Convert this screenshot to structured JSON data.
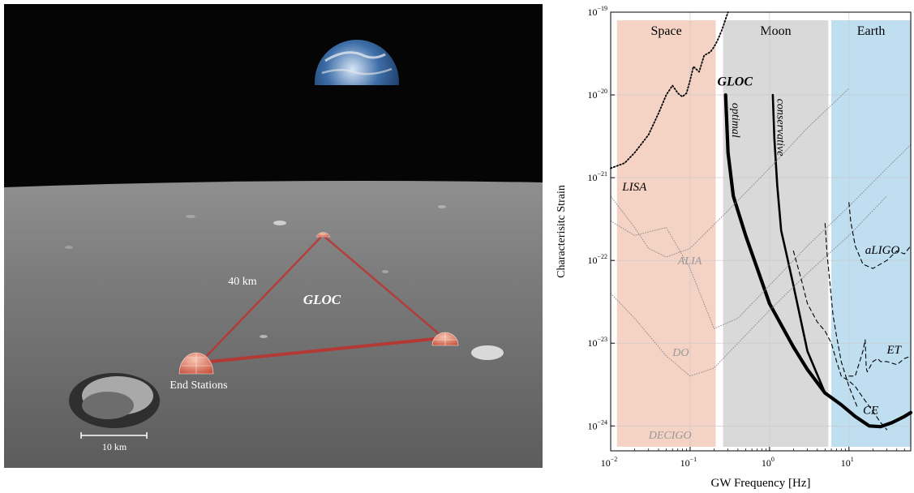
{
  "left_panel": {
    "triangle_label": "GLOC",
    "side_label": "40 km",
    "station_label": "End Stations",
    "scale_label": "10 km"
  },
  "chart_data": {
    "type": "line",
    "title": "",
    "xlabel": "GW Frequency [Hz]",
    "ylabel": "Characterisitc Strain",
    "xscale": "log",
    "yscale": "log",
    "xlim": [
      0.01,
      60
    ],
    "ylim": [
      5e-25,
      1e-19
    ],
    "x_ticks": [
      {
        "value": 0.01,
        "base": "10",
        "exp": "−2"
      },
      {
        "value": 0.1,
        "base": "10",
        "exp": "−1"
      },
      {
        "value": 1,
        "base": "10",
        "exp": "0"
      },
      {
        "value": 10,
        "base": "10",
        "exp": "1"
      }
    ],
    "y_ticks": [
      {
        "value": 1e-24,
        "base": "10",
        "exp": "−24"
      },
      {
        "value": 1e-23,
        "base": "10",
        "exp": "−23"
      },
      {
        "value": 1e-22,
        "base": "10",
        "exp": "−22"
      },
      {
        "value": 1e-21,
        "base": "10",
        "exp": "−21"
      },
      {
        "value": 1e-20,
        "base": "10",
        "exp": "−20"
      },
      {
        "value": 1e-19,
        "base": "10",
        "exp": "−19"
      }
    ],
    "grid": true,
    "bands": [
      {
        "label": "Space",
        "x": [
          0.012,
          0.21
        ],
        "color": "#f4d3c4"
      },
      {
        "label": "Moon",
        "x": [
          0.26,
          5.5
        ],
        "color": "#d9d9d9"
      },
      {
        "label": "Earth",
        "x": [
          6,
          60
        ],
        "color": "#bfdff1"
      }
    ],
    "annotations": [
      {
        "text": "GLOC",
        "series": "GLOC optimal"
      },
      {
        "text": "optimal",
        "series": "GLOC optimal"
      },
      {
        "text": "conservative",
        "series": "GLOC conservative"
      },
      {
        "text": "LISA",
        "series": "LISA"
      },
      {
        "text": "ALIA",
        "series": "ALIA"
      },
      {
        "text": "DO",
        "series": "DO"
      },
      {
        "text": "DECIGO",
        "series": "DECIGO"
      },
      {
        "text": "aLIGO",
        "series": "aLIGO"
      },
      {
        "text": "ET",
        "series": "ET"
      },
      {
        "text": "CE",
        "series": "CE"
      }
    ],
    "series": [
      {
        "name": "GLOC optimal",
        "style": "solid-thick",
        "color": "#000000",
        "x": [
          0.28,
          0.3,
          0.35,
          0.5,
          0.7,
          1,
          2,
          3,
          5,
          8,
          12,
          18,
          25,
          35,
          50,
          60
        ],
        "y": [
          1e-20,
          2e-21,
          6e-22,
          2e-22,
          8e-23,
          3e-23,
          9e-24,
          4.8e-24,
          2.5e-24,
          1.8e-24,
          1.3e-24,
          1e-24,
          9.8e-25,
          1.1e-24,
          1.3e-24,
          1.45e-24
        ]
      },
      {
        "name": "GLOC conservative",
        "style": "solid",
        "color": "#000000",
        "x": [
          1.1,
          1.15,
          1.25,
          1.4,
          1.6,
          2,
          3,
          5
        ],
        "y": [
          1e-20,
          3e-21,
          8e-22,
          2.3e-22,
          1.3e-22,
          5e-23,
          8e-24,
          2.5e-24
        ]
      },
      {
        "name": "LISA",
        "style": "dotted",
        "color": "#000000",
        "x": [
          0.01,
          0.015,
          0.02,
          0.03,
          0.04,
          0.05,
          0.06,
          0.07,
          0.08,
          0.09,
          0.1,
          0.11,
          0.13,
          0.15,
          0.18,
          0.2,
          0.22,
          0.25,
          0.3
        ],
        "y": [
          1.3e-21,
          1.5e-21,
          2e-21,
          3.3e-21,
          6e-21,
          1e-20,
          1.3e-20,
          1.05e-20,
          9.5e-21,
          1.05e-20,
          1.5e-20,
          2.2e-20,
          1.9e-20,
          3e-20,
          3.3e-20,
          3.8e-20,
          4.5e-20,
          6e-20,
          1e-19
        ]
      },
      {
        "name": "ALIA",
        "style": "dotted-gray",
        "color": "#888888",
        "x": [
          0.01,
          0.02,
          0.03,
          0.05,
          0.1,
          0.3,
          1,
          3,
          10
        ],
        "y": [
          6e-22,
          2.5e-22,
          1.4e-22,
          1.1e-22,
          1.4e-22,
          4e-22,
          1.3e-21,
          4e-21,
          1.2e-20
        ]
      },
      {
        "name": "DO",
        "style": "dotted-gray",
        "color": "#888888",
        "x": [
          0.01,
          0.02,
          0.05,
          0.1,
          0.2,
          0.4,
          1,
          3,
          10,
          30
        ],
        "y": [
          4e-23,
          2e-23,
          7e-24,
          4e-24,
          5e-24,
          1e-23,
          2.5e-23,
          7e-23,
          2e-22,
          6e-22
        ]
      },
      {
        "name": "DECIGO",
        "style": "dotted-gray",
        "color": "#888888",
        "x": [
          0.01,
          0.02,
          0.05,
          0.1,
          0.2,
          0.4,
          1,
          3,
          10,
          30,
          60
        ],
        "y": [
          3e-22,
          2e-22,
          2.5e-22,
          8e-23,
          1.5e-23,
          2e-23,
          5e-23,
          1.5e-22,
          4.5e-22,
          1.3e-21,
          2.5e-21
        ]
      },
      {
        "name": "aLIGO",
        "style": "dashed",
        "color": "#000000",
        "x": [
          10,
          10.5,
          12,
          15,
          20,
          30,
          40,
          50,
          60
        ],
        "y": [
          5e-22,
          3e-22,
          1.5e-22,
          9e-23,
          8e-23,
          1e-22,
          1.3e-22,
          1.2e-22,
          1.5e-22
        ]
      },
      {
        "name": "ET",
        "style": "dashed",
        "color": "#000000",
        "x": [
          10,
          12,
          15,
          16,
          16.5,
          17,
          20,
          23,
          25,
          30,
          40,
          50,
          60
        ],
        "y": [
          4e-24,
          4e-24,
          8e-24,
          1.1e-23,
          5e-24,
          4.5e-24,
          6e-24,
          6.5e-24,
          6e-24,
          6e-24,
          5.5e-24,
          6.5e-24,
          7e-24
        ]
      },
      {
        "name": "CE",
        "style": "dashed",
        "color": "#000000",
        "x": [
          2,
          2.5,
          3,
          4,
          5,
          6,
          7,
          8,
          10,
          12,
          15,
          20,
          25,
          30
        ],
        "y": [
          1.3e-22,
          6e-23,
          3e-23,
          1.8e-23,
          1.4e-23,
          1e-23,
          6e-24,
          4e-24,
          3.5e-24,
          3e-24,
          2.2e-24,
          1.5e-24,
          1.1e-24,
          9e-25
        ]
      },
      {
        "name": "Moon dashed",
        "style": "dashed",
        "color": "#000000",
        "x": [
          5,
          5.3,
          5.8,
          6.3,
          7,
          8,
          10,
          13
        ],
        "y": [
          2.8e-22,
          1.2e-22,
          5e-23,
          2.2e-23,
          1.2e-23,
          6e-24,
          3e-24,
          1.6e-24
        ]
      }
    ]
  }
}
